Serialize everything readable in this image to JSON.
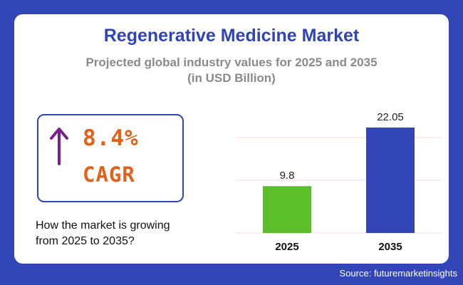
{
  "header": {
    "title": "Regenerative Medicine Market",
    "subtitle_line1": "Projected global industry values for 2025 and 2035",
    "subtitle_line2": "(in USD Billion)"
  },
  "cagr": {
    "value": "8.4%",
    "label": "CAGR",
    "icon": "arrow-up-icon",
    "arrow_color": "#7b1f8c",
    "text_color": "#e2621b"
  },
  "question": {
    "line1": "How the market is growing",
    "line2": "from 2025 to 2035?"
  },
  "source": "Source: futuremarketinsights",
  "chart_data": {
    "type": "bar",
    "categories": [
      "2025",
      "2035"
    ],
    "values": [
      9.8,
      22.05
    ],
    "value_labels": [
      "9.8",
      "22.05"
    ],
    "colors": [
      "#5cbf2a",
      "#3346b8"
    ],
    "ylim": [
      0,
      22.05
    ],
    "grid": true,
    "title": "",
    "xlabel": "",
    "ylabel": ""
  }
}
